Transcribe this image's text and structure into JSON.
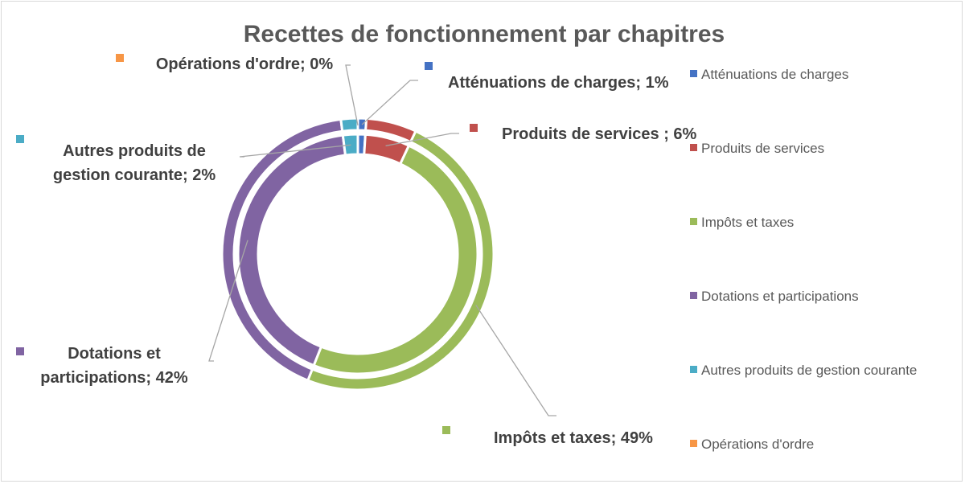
{
  "chart_data": {
    "type": "pie",
    "variant": "doughnut",
    "title": "Recettes de fonctionnement par chapitres",
    "legend_position": "right",
    "categories": [
      "Atténuations de charges",
      "Produits de services",
      "Impôts et taxes",
      "Dotations et participations",
      "Autres produits de gestion courante",
      "Opérations d'ordre"
    ],
    "colors": [
      "#4472c4",
      "#c0504d",
      "#9bbb59",
      "#8064a2",
      "#4bacc6",
      "#f79646"
    ],
    "series": [
      {
        "values": [
          1,
          6,
          49,
          42,
          2,
          0
        ]
      },
      {
        "values": [
          1,
          6,
          49,
          42,
          2,
          0
        ]
      }
    ],
    "data_labels": [
      [
        "Atténuations de charges; 1%"
      ],
      [
        "Produits de services ; 6%"
      ],
      [
        "Impôts et taxes; 49%"
      ],
      [
        "Dotations et",
        "participations; 42%"
      ],
      [
        "Autres produits de",
        "gestion courante; 2%"
      ],
      [
        "Opérations d'ordre; 0%"
      ]
    ]
  }
}
